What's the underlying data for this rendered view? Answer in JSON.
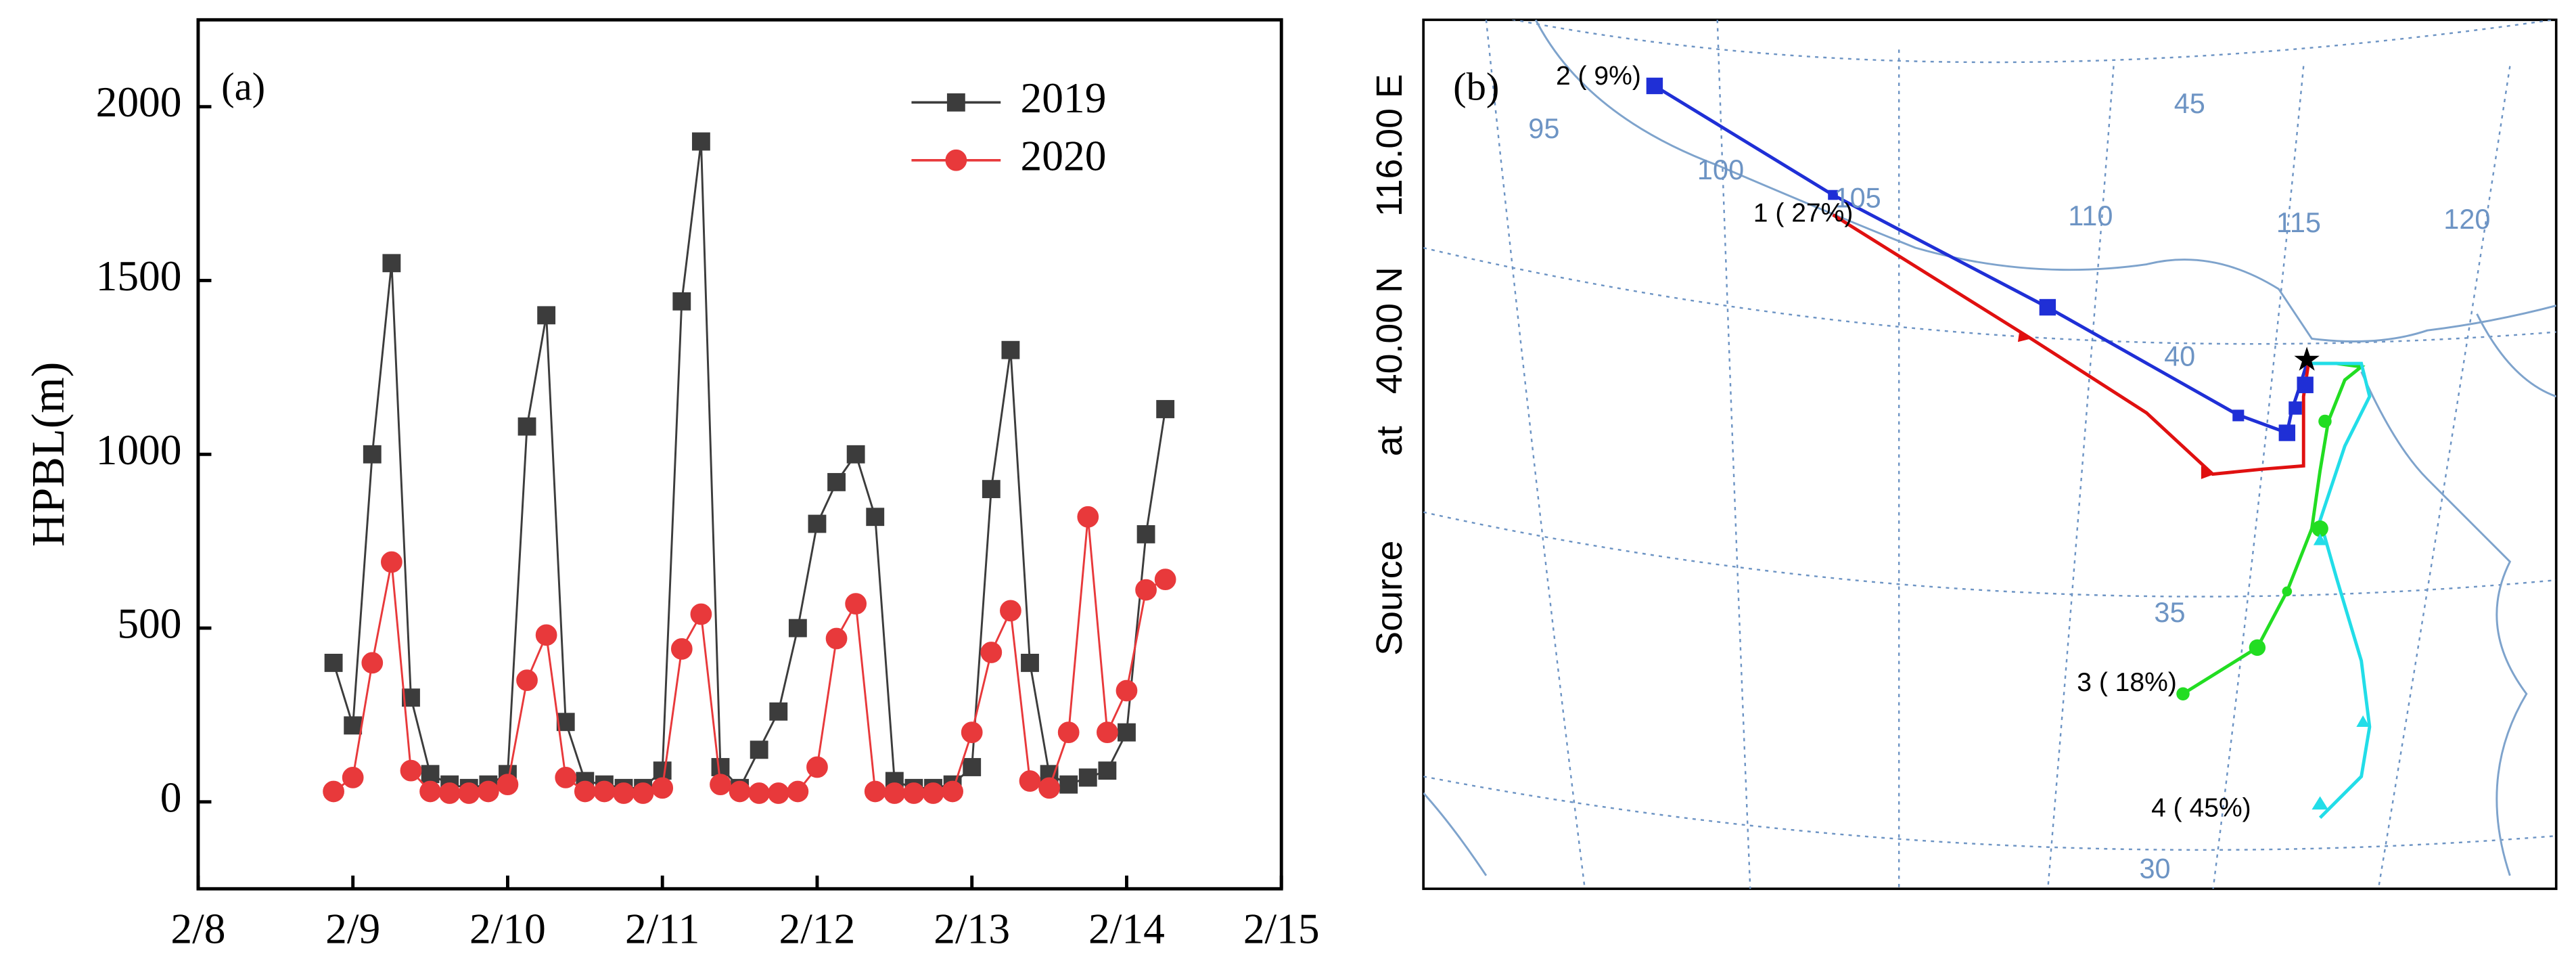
{
  "chart_data": {
    "type": "line",
    "panel_label": "(a)",
    "ylabel": "HPBL(m)",
    "x": [
      8.875,
      9.0,
      9.125,
      9.25,
      9.375,
      9.5,
      9.625,
      9.75,
      9.875,
      10.0,
      10.125,
      10.25,
      10.375,
      10.5,
      10.625,
      10.75,
      10.875,
      11.0,
      11.125,
      11.25,
      11.375,
      11.5,
      11.625,
      11.75,
      11.875,
      12.0,
      12.125,
      12.25,
      12.375,
      12.5,
      12.625,
      12.75,
      12.875,
      13.0,
      13.125,
      13.25,
      13.375,
      13.5,
      13.625,
      13.75,
      13.875,
      14.0,
      14.125,
      14.25
    ],
    "series": [
      {
        "name": "2019",
        "color": "#3c3c3c",
        "marker": "square",
        "values": [
          400,
          220,
          1000,
          1550,
          300,
          80,
          50,
          40,
          50,
          80,
          1080,
          1400,
          230,
          60,
          50,
          40,
          40,
          90,
          1440,
          1900,
          100,
          40,
          150,
          260,
          500,
          800,
          920,
          1000,
          820,
          60,
          40,
          40,
          50,
          100,
          900,
          1300,
          400,
          80,
          50,
          70,
          90,
          200,
          770,
          1130
        ]
      },
      {
        "name": "2020",
        "color": "#e8393b",
        "marker": "circle",
        "values": [
          30,
          70,
          400,
          690,
          90,
          30,
          25,
          25,
          30,
          50,
          350,
          480,
          70,
          30,
          30,
          25,
          25,
          40,
          440,
          540,
          50,
          30,
          25,
          25,
          30,
          100,
          470,
          570,
          30,
          25,
          25,
          25,
          30,
          200,
          430,
          550,
          60,
          40,
          200,
          820,
          200,
          320,
          610,
          640
        ]
      }
    ],
    "xlim": [
      8,
      15
    ],
    "xticks": [
      {
        "value": 8,
        "label": "2/8"
      },
      {
        "value": 9,
        "label": "2/9"
      },
      {
        "value": 10,
        "label": "2/10"
      },
      {
        "value": 11,
        "label": "2/11"
      },
      {
        "value": 12,
        "label": "2/12"
      },
      {
        "value": 13,
        "label": "2/13"
      },
      {
        "value": 14,
        "label": "2/14"
      },
      {
        "value": 15,
        "label": "2/15"
      }
    ],
    "ylim": [
      -250,
      2250
    ],
    "yticks": [
      0,
      500,
      1000,
      1500,
      2000
    ],
    "legend": "top-right",
    "grid": false
  },
  "map": {
    "panel_label": "(b)",
    "source_label": [
      "Source",
      "at",
      "40.00 N",
      "116.00 E"
    ],
    "lon_labels": [
      95,
      100,
      105,
      110,
      115,
      120
    ],
    "lat_labels": [
      45,
      40,
      35,
      30
    ],
    "trajectory_labels": [
      "2 ( 9%)",
      "1 ( 27%)",
      "3 ( 18%)",
      "4 ( 45%)"
    ]
  }
}
